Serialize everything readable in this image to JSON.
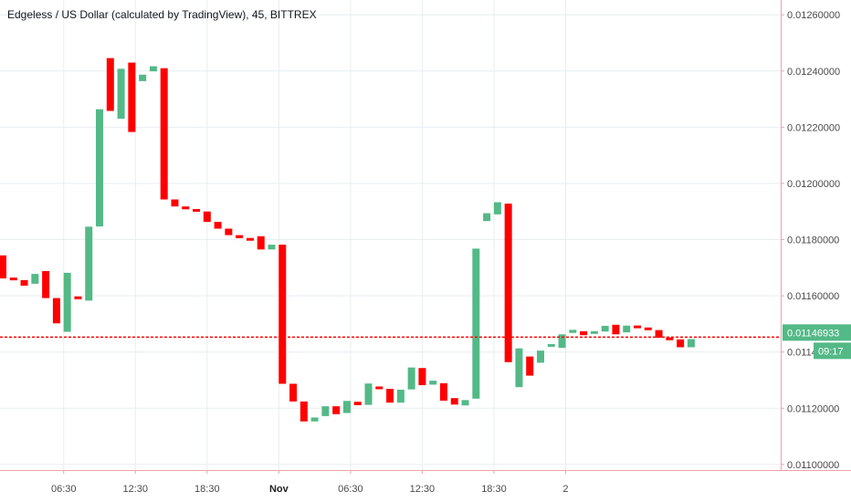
{
  "chart_data": {
    "type": "candlestick",
    "title": "Edgeless / US Dollar (calculated by TradingView), 45, BITTREX",
    "y_tick_labels": [
      "0.01260000",
      "0.01240000",
      "0.01220000",
      "0.01200000",
      "0.01180000",
      "0.01160000",
      "0.01140000",
      "0.01120000",
      "0.01100000"
    ],
    "y_tick_values": [
      0.0126,
      0.0124,
      0.0122,
      0.012,
      0.0118,
      0.0116,
      0.0114,
      0.0112,
      0.011
    ],
    "x_tick_labels": [
      "06:30",
      "12:30",
      "18:30",
      "Nov",
      "06:30",
      "12:30",
      "18:30",
      "2"
    ],
    "x_tick_bold": [
      false,
      false,
      false,
      true,
      false,
      false,
      false,
      false
    ],
    "x_tick_index": [
      5.667,
      12.333,
      19,
      25.667,
      32.333,
      39,
      45.667,
      52.333
    ],
    "ylim": [
      0.01098,
      0.01263
    ],
    "grid": true,
    "last_price": 0.01146933,
    "last_price_label": "0.01146933",
    "countdown_label": "09:17",
    "colors": {
      "up": "#53b987",
      "down": "#eb4d5c",
      "down_bar": "#ff0000",
      "last_price_line": "#ff0000",
      "tag_bg": "#53b987",
      "grid": "#e6eef2",
      "axis": "#f0a1a8",
      "text": "#4a4a4a"
    },
    "candles": [
      {
        "o": 0.011744,
        "c": 0.011662,
        "dir": "down"
      },
      {
        "o": 0.011664,
        "c": 0.011656,
        "dir": "down"
      },
      {
        "o": 0.011656,
        "c": 0.011636,
        "dir": "down"
      },
      {
        "o": 0.011643,
        "c": 0.011678,
        "dir": "up"
      },
      {
        "o": 0.011688,
        "c": 0.011592,
        "dir": "down"
      },
      {
        "o": 0.011592,
        "c": 0.011502,
        "dir": "down"
      },
      {
        "o": 0.011472,
        "c": 0.011682,
        "dir": "up"
      },
      {
        "o": 0.011598,
        "c": 0.011588,
        "dir": "down"
      },
      {
        "o": 0.011583,
        "c": 0.011846,
        "dir": "up"
      },
      {
        "o": 0.011847,
        "c": 0.012264,
        "dir": "up"
      },
      {
        "o": 0.012446,
        "c": 0.012258,
        "dir": "down"
      },
      {
        "o": 0.01223,
        "c": 0.012408,
        "dir": "up"
      },
      {
        "o": 0.01243,
        "c": 0.012183,
        "dir": "down"
      },
      {
        "o": 0.012364,
        "c": 0.012387,
        "dir": "up"
      },
      {
        "o": 0.012399,
        "c": 0.012417,
        "dir": "up"
      },
      {
        "o": 0.01241,
        "c": 0.011943,
        "dir": "down"
      },
      {
        "o": 0.011943,
        "c": 0.011918,
        "dir": "down"
      },
      {
        "o": 0.011918,
        "c": 0.011908,
        "dir": "down"
      },
      {
        "o": 0.011908,
        "c": 0.0119,
        "dir": "down"
      },
      {
        "o": 0.0119,
        "c": 0.011863,
        "dir": "down"
      },
      {
        "o": 0.011863,
        "c": 0.011839,
        "dir": "down"
      },
      {
        "o": 0.011839,
        "c": 0.011816,
        "dir": "down"
      },
      {
        "o": 0.011816,
        "c": 0.011805,
        "dir": "down"
      },
      {
        "o": 0.011805,
        "c": 0.011797,
        "dir": "down"
      },
      {
        "o": 0.011812,
        "c": 0.011765,
        "dir": "down"
      },
      {
        "o": 0.011765,
        "c": 0.011782,
        "dir": "up"
      },
      {
        "o": 0.011782,
        "c": 0.011287,
        "dir": "down"
      },
      {
        "o": 0.011287,
        "c": 0.011224,
        "dir": "down"
      },
      {
        "o": 0.011224,
        "c": 0.011153,
        "dir": "down"
      },
      {
        "o": 0.011153,
        "c": 0.011167,
        "dir": "up"
      },
      {
        "o": 0.011172,
        "c": 0.011207,
        "dir": "up"
      },
      {
        "o": 0.011207,
        "c": 0.011179,
        "dir": "down"
      },
      {
        "o": 0.011183,
        "c": 0.011226,
        "dir": "up"
      },
      {
        "o": 0.011223,
        "c": 0.011211,
        "dir": "down"
      },
      {
        "o": 0.011212,
        "c": 0.011288,
        "dir": "up"
      },
      {
        "o": 0.011275,
        "c": 0.01127,
        "dir": "down"
      },
      {
        "o": 0.011269,
        "c": 0.01122,
        "dir": "down"
      },
      {
        "o": 0.01122,
        "c": 0.011266,
        "dir": "up"
      },
      {
        "o": 0.011267,
        "c": 0.011345,
        "dir": "up"
      },
      {
        "o": 0.011343,
        "c": 0.011282,
        "dir": "down"
      },
      {
        "o": 0.011284,
        "c": 0.011298,
        "dir": "up"
      },
      {
        "o": 0.011289,
        "c": 0.011227,
        "dir": "down"
      },
      {
        "o": 0.011236,
        "c": 0.011213,
        "dir": "down"
      },
      {
        "o": 0.01121,
        "c": 0.011229,
        "dir": "up"
      },
      {
        "o": 0.011234,
        "c": 0.011768,
        "dir": "up"
      },
      {
        "o": 0.011866,
        "c": 0.011894,
        "dir": "up"
      },
      {
        "o": 0.01189,
        "c": 0.011933,
        "dir": "up"
      },
      {
        "o": 0.011928,
        "c": 0.011364,
        "dir": "down"
      },
      {
        "o": 0.011275,
        "c": 0.011413,
        "dir": "up"
      },
      {
        "o": 0.011384,
        "c": 0.011316,
        "dir": "down"
      },
      {
        "o": 0.011362,
        "c": 0.011405,
        "dir": "up"
      },
      {
        "o": 0.01142,
        "c": 0.011427,
        "dir": "up"
      },
      {
        "o": 0.011415,
        "c": 0.011463,
        "dir": "up"
      },
      {
        "o": 0.011468,
        "c": 0.011479,
        "dir": "up"
      },
      {
        "o": 0.011474,
        "c": 0.01146,
        "dir": "down"
      },
      {
        "o": 0.011466,
        "c": 0.011473,
        "dir": "up"
      },
      {
        "o": 0.011473,
        "c": 0.011493,
        "dir": "up"
      },
      {
        "o": 0.011497,
        "c": 0.011463,
        "dir": "down"
      },
      {
        "o": 0.01147,
        "c": 0.011494,
        "dir": "up"
      },
      {
        "o": 0.011492,
        "c": 0.011487,
        "dir": "down"
      },
      {
        "o": 0.011487,
        "c": 0.011478,
        "dir": "down"
      },
      {
        "o": 0.011478,
        "c": 0.011451,
        "dir": "down"
      },
      {
        "o": 0.011449,
        "c": 0.011445,
        "dir": "down"
      },
      {
        "o": 0.011445,
        "c": 0.011417,
        "dir": "down"
      },
      {
        "o": 0.011417,
        "c": 0.011446,
        "dir": "up"
      }
    ]
  }
}
